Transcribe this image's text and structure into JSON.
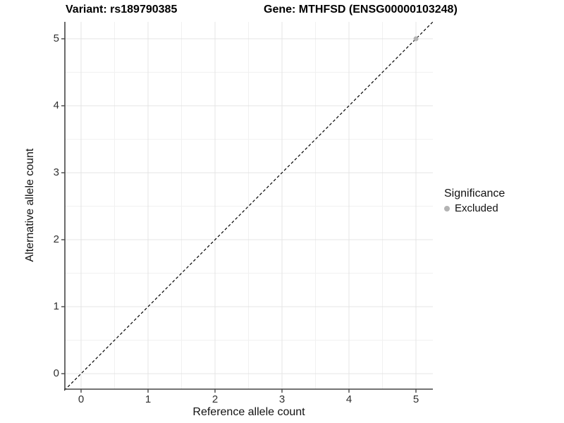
{
  "title": {
    "variant": "Variant: rs189790385",
    "gene": "Gene: MTHFSD (ENSG00000103248)"
  },
  "axes": {
    "x": {
      "label": "Reference allele count",
      "ticks": [
        "0",
        "1",
        "2",
        "3",
        "4",
        "5"
      ]
    },
    "y": {
      "label": "Alternative allele count",
      "ticks": [
        "0",
        "1",
        "2",
        "3",
        "4",
        "5"
      ]
    }
  },
  "legend": {
    "title": "Significance",
    "items": [
      {
        "label": "Excluded",
        "color": "#b3b3b3"
      }
    ]
  },
  "colors": {
    "grid_major": "#e4e4e4",
    "grid_minor": "#f1f1f1",
    "axis": "#464646",
    "dashed_line": "#000000",
    "point": "#b3b3b3",
    "background": "#ffffff"
  },
  "chart_data": {
    "type": "scatter",
    "title": "Variant: rs189790385 | Gene: MTHFSD (ENSG00000103248)",
    "xlabel": "Reference allele count",
    "ylabel": "Alternative allele count",
    "xlim": [
      -0.25,
      5.25
    ],
    "ylim": [
      -0.25,
      5.25
    ],
    "x_ticks": [
      0,
      1,
      2,
      3,
      4,
      5
    ],
    "y_ticks": [
      0,
      1,
      2,
      3,
      4,
      5
    ],
    "grid": "major gridlines at integers, minor gridlines at half-integers",
    "legend_position": "right",
    "series": [
      {
        "name": "Excluded",
        "color": "#b3b3b3",
        "points": [
          [
            5,
            5
          ]
        ]
      }
    ],
    "reference_line": {
      "kind": "identity y = x",
      "slope": 1,
      "intercept": 0,
      "style": "dashed",
      "color": "#000000"
    }
  }
}
